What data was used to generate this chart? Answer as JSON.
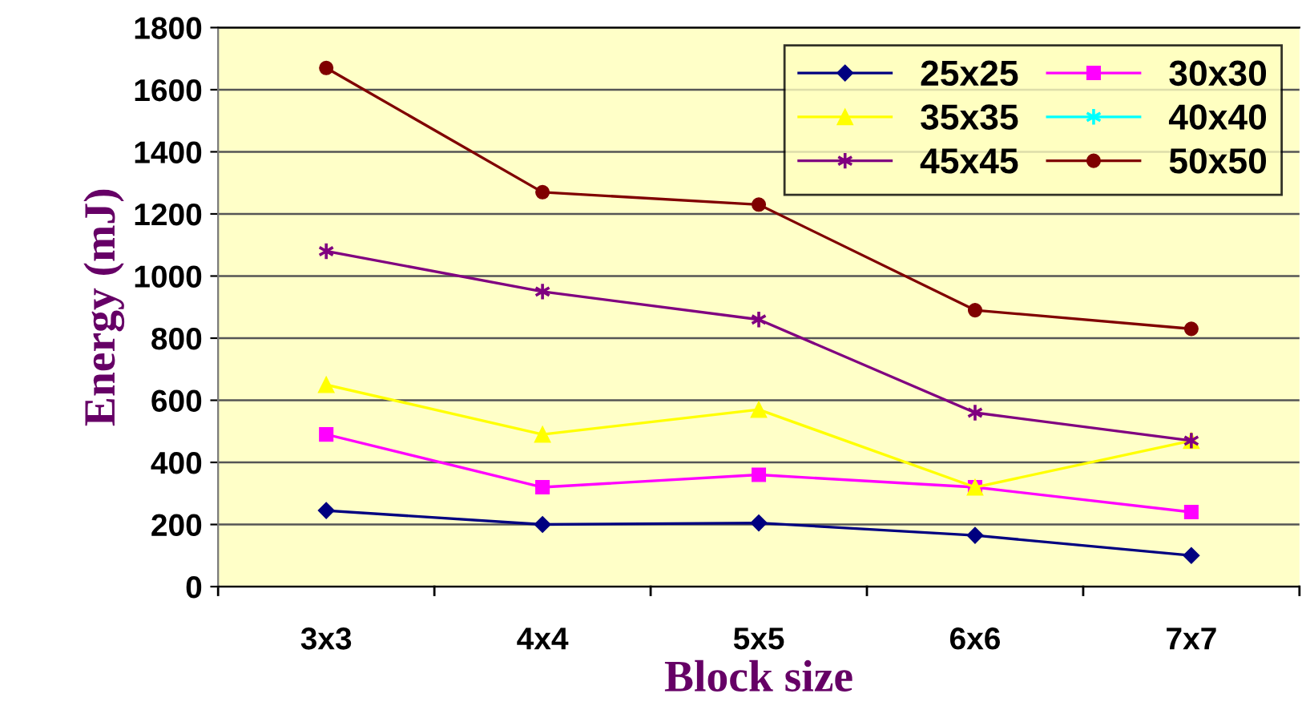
{
  "chart_data": {
    "type": "line",
    "xlabel": "Block size",
    "ylabel": "Energy (mJ)",
    "categories": [
      "3x3",
      "4x4",
      "5x5",
      "6x6",
      "7x7"
    ],
    "ylim": [
      0,
      1800
    ],
    "yticks": [
      0,
      200,
      400,
      600,
      800,
      1000,
      1200,
      1400,
      1600,
      1800
    ],
    "grid": "y",
    "legend": "top right",
    "series": [
      {
        "name": "25x25",
        "color": "#000080",
        "marker": "diamond",
        "values": [
          245,
          200,
          205,
          165,
          100
        ]
      },
      {
        "name": "30x30",
        "color": "#ff00ff",
        "marker": "square",
        "values": [
          490,
          320,
          360,
          320,
          240
        ]
      },
      {
        "name": "35x35",
        "color": "#ffff00",
        "marker": "triangle",
        "values": [
          650,
          490,
          570,
          320,
          470
        ]
      },
      {
        "name": "40x40",
        "color": "#00ffff",
        "marker": "cross",
        "values": [
          null,
          null,
          null,
          null,
          null
        ]
      },
      {
        "name": "45x45",
        "color": "#800080",
        "marker": "cross",
        "values": [
          1080,
          950,
          860,
          560,
          470
        ]
      },
      {
        "name": "50x50",
        "color": "#800000",
        "marker": "circle",
        "values": [
          1670,
          1270,
          1230,
          890,
          830
        ]
      }
    ]
  }
}
